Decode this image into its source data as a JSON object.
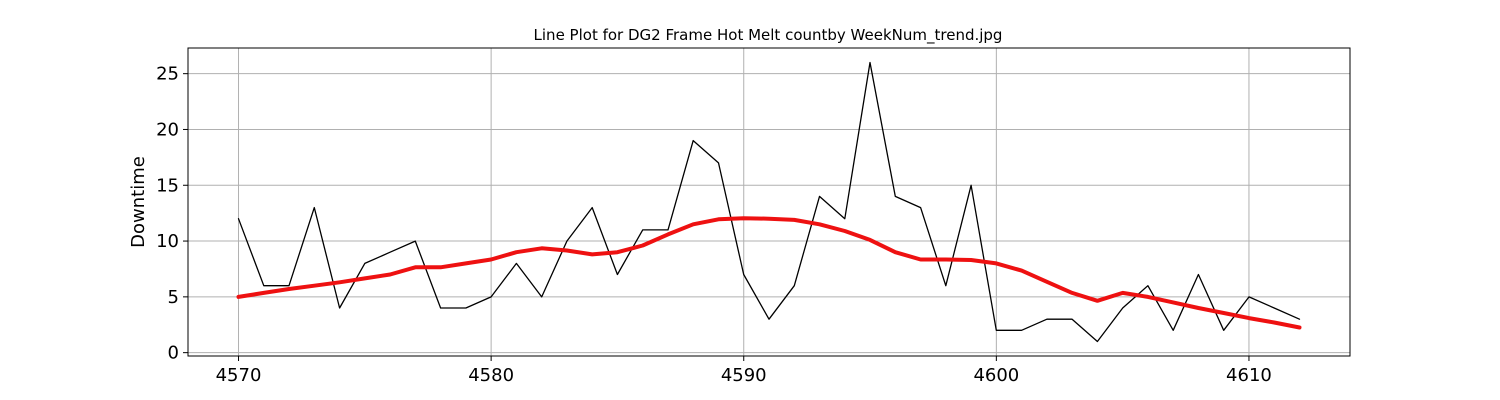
{
  "chart_data": {
    "type": "line",
    "title": "Line Plot for DG2 Frame Hot Melt countby WeekNum_trend.jpg",
    "xlabel": "",
    "ylabel": "Downtime",
    "xlim": [
      4568,
      4614
    ],
    "ylim": [
      -0.3,
      27.3
    ],
    "xticks": [
      4570,
      4580,
      4590,
      4600,
      4610
    ],
    "yticks": [
      0,
      5,
      10,
      15,
      20,
      25
    ],
    "grid": true,
    "series": [
      {
        "color": "#000000",
        "x": [
          4570,
          4571,
          4572,
          4573,
          4574,
          4575,
          4576,
          4577,
          4578,
          4579,
          4580,
          4581,
          4582,
          4583,
          4584,
          4585,
          4586,
          4587,
          4588,
          4589,
          4590,
          4591,
          4592,
          4593,
          4594,
          4595,
          4596,
          4597,
          4598,
          4599,
          4600,
          4601,
          4602,
          4603,
          4604,
          4605,
          4606,
          4607,
          4608,
          4609,
          4610,
          4611,
          4612
        ],
        "values": [
          12,
          6,
          6,
          13,
          4,
          8,
          9,
          10,
          4,
          4,
          5,
          8,
          5,
          10,
          13,
          7,
          11,
          11,
          19,
          17,
          7,
          3,
          6,
          14,
          12,
          26,
          14,
          13,
          6,
          15,
          2,
          2,
          3,
          3,
          1,
          4,
          6,
          2,
          7,
          2,
          5,
          4,
          3
        ]
      },
      {
        "color": "#ee1111",
        "x": [
          4570,
          4571,
          4572,
          4573,
          4574,
          4575,
          4576,
          4577,
          4578,
          4579,
          4580,
          4581,
          4582,
          4583,
          4584,
          4585,
          4586,
          4587,
          4588,
          4589,
          4590,
          4591,
          4592,
          4593,
          4594,
          4595,
          4596,
          4597,
          4598,
          4599,
          4600,
          4601,
          4602,
          4603,
          4604,
          4605,
          4606,
          4607,
          4608,
          4609,
          4610,
          4611,
          4612
        ],
        "values": [
          5.0,
          5.35,
          5.7,
          6.0,
          6.3,
          6.65,
          7.0,
          7.65,
          7.65,
          8.0,
          8.35,
          9.0,
          9.35,
          9.15,
          8.8,
          9.0,
          9.6,
          10.6,
          11.5,
          11.95,
          12.05,
          12.0,
          11.9,
          11.5,
          10.9,
          10.1,
          9.0,
          8.35,
          8.35,
          8.3,
          8.0,
          7.35,
          6.35,
          5.35,
          4.65,
          5.35,
          5.0,
          4.5,
          4.0,
          3.55,
          3.1,
          2.7,
          2.25
        ]
      }
    ]
  }
}
